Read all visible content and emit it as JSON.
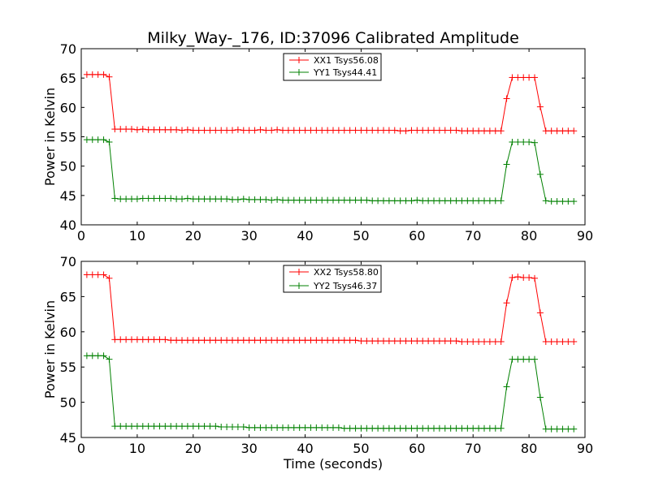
{
  "chart_data": [
    {
      "type": "line",
      "title": "Milky_Way-_176, ID:37096 Calibrated Amplitude",
      "xlabel": "",
      "ylabel": "Power in Kelvin",
      "xlim": [
        0,
        90
      ],
      "ylim": [
        40,
        70
      ],
      "xticks": [
        0,
        10,
        20,
        30,
        40,
        50,
        60,
        70,
        80,
        90
      ],
      "yticks": [
        40,
        45,
        50,
        55,
        60,
        65,
        70
      ],
      "grid": false,
      "legend_position": "top-center",
      "x": [
        1,
        2,
        3,
        4,
        5,
        6,
        7,
        8,
        9,
        10,
        11,
        12,
        13,
        14,
        15,
        16,
        17,
        18,
        19,
        20,
        21,
        22,
        23,
        24,
        25,
        26,
        27,
        28,
        29,
        30,
        31,
        32,
        33,
        34,
        35,
        36,
        37,
        38,
        39,
        40,
        41,
        42,
        43,
        44,
        45,
        46,
        47,
        48,
        49,
        50,
        51,
        52,
        53,
        54,
        55,
        56,
        57,
        58,
        59,
        60,
        61,
        62,
        63,
        64,
        65,
        66,
        67,
        68,
        69,
        70,
        71,
        72,
        73,
        74,
        75,
        76,
        77,
        78,
        79,
        80,
        81,
        82,
        83,
        84,
        85,
        86,
        87,
        88
      ],
      "series": [
        {
          "name": "XX1 Tsys56.08",
          "color": "#ff0000",
          "values": [
            65.6,
            65.6,
            65.6,
            65.6,
            65.2,
            56.3,
            56.3,
            56.3,
            56.3,
            56.2,
            56.3,
            56.2,
            56.2,
            56.2,
            56.2,
            56.2,
            56.2,
            56.1,
            56.2,
            56.1,
            56.1,
            56.1,
            56.1,
            56.1,
            56.1,
            56.1,
            56.1,
            56.2,
            56.1,
            56.1,
            56.1,
            56.2,
            56.1,
            56.1,
            56.2,
            56.1,
            56.1,
            56.1,
            56.1,
            56.1,
            56.1,
            56.1,
            56.1,
            56.1,
            56.1,
            56.1,
            56.1,
            56.1,
            56.1,
            56.1,
            56.1,
            56.1,
            56.1,
            56.1,
            56.1,
            56.1,
            56.0,
            56.0,
            56.1,
            56.1,
            56.1,
            56.1,
            56.1,
            56.1,
            56.1,
            56.1,
            56.1,
            56.0,
            56.0,
            56.0,
            56.0,
            56.0,
            56.0,
            56.0,
            56.0,
            61.5,
            65.1,
            65.1,
            65.1,
            65.1,
            65.1,
            60.1,
            56.0,
            56.0,
            56.0,
            56.0,
            56.0,
            56.0
          ]
        },
        {
          "name": "YY1 Tsys44.41",
          "color": "#008000",
          "values": [
            54.5,
            54.5,
            54.5,
            54.5,
            54.1,
            44.5,
            44.4,
            44.4,
            44.4,
            44.4,
            44.5,
            44.5,
            44.5,
            44.5,
            44.5,
            44.5,
            44.4,
            44.4,
            44.5,
            44.4,
            44.4,
            44.4,
            44.4,
            44.4,
            44.4,
            44.4,
            44.3,
            44.3,
            44.4,
            44.3,
            44.3,
            44.3,
            44.3,
            44.2,
            44.3,
            44.2,
            44.2,
            44.2,
            44.2,
            44.2,
            44.2,
            44.2,
            44.2,
            44.2,
            44.2,
            44.2,
            44.2,
            44.2,
            44.2,
            44.2,
            44.2,
            44.1,
            44.1,
            44.1,
            44.1,
            44.1,
            44.1,
            44.1,
            44.1,
            44.2,
            44.1,
            44.1,
            44.1,
            44.1,
            44.1,
            44.1,
            44.1,
            44.1,
            44.1,
            44.1,
            44.1,
            44.1,
            44.1,
            44.1,
            44.1,
            50.3,
            54.1,
            54.1,
            54.1,
            54.1,
            54.0,
            48.6,
            44.1,
            44.0,
            44.0,
            44.0,
            44.0,
            44.0
          ]
        }
      ]
    },
    {
      "type": "line",
      "title": "",
      "xlabel": "Time (seconds)",
      "ylabel": "Power in Kelvin",
      "xlim": [
        0,
        90
      ],
      "ylim": [
        45,
        70
      ],
      "xticks": [
        0,
        10,
        20,
        30,
        40,
        50,
        60,
        70,
        80,
        90
      ],
      "yticks": [
        45,
        50,
        55,
        60,
        65,
        70
      ],
      "grid": false,
      "legend_position": "top-center",
      "x": [
        1,
        2,
        3,
        4,
        5,
        6,
        7,
        8,
        9,
        10,
        11,
        12,
        13,
        14,
        15,
        16,
        17,
        18,
        19,
        20,
        21,
        22,
        23,
        24,
        25,
        26,
        27,
        28,
        29,
        30,
        31,
        32,
        33,
        34,
        35,
        36,
        37,
        38,
        39,
        40,
        41,
        42,
        43,
        44,
        45,
        46,
        47,
        48,
        49,
        50,
        51,
        52,
        53,
        54,
        55,
        56,
        57,
        58,
        59,
        60,
        61,
        62,
        63,
        64,
        65,
        66,
        67,
        68,
        69,
        70,
        71,
        72,
        73,
        74,
        75,
        76,
        77,
        78,
        79,
        80,
        81,
        82,
        83,
        84,
        85,
        86,
        87,
        88
      ],
      "series": [
        {
          "name": "XX2 Tsys58.80",
          "color": "#ff0000",
          "values": [
            68.1,
            68.1,
            68.1,
            68.1,
            67.6,
            58.9,
            58.9,
            58.9,
            58.9,
            58.9,
            58.9,
            58.9,
            58.9,
            58.9,
            58.9,
            58.8,
            58.8,
            58.8,
            58.8,
            58.8,
            58.8,
            58.8,
            58.8,
            58.8,
            58.8,
            58.8,
            58.8,
            58.8,
            58.8,
            58.8,
            58.8,
            58.8,
            58.8,
            58.8,
            58.8,
            58.8,
            58.8,
            58.8,
            58.8,
            58.8,
            58.8,
            58.8,
            58.8,
            58.8,
            58.8,
            58.8,
            58.8,
            58.8,
            58.8,
            58.7,
            58.7,
            58.7,
            58.7,
            58.7,
            58.7,
            58.7,
            58.7,
            58.7,
            58.7,
            58.7,
            58.7,
            58.7,
            58.7,
            58.7,
            58.7,
            58.7,
            58.7,
            58.6,
            58.6,
            58.6,
            58.6,
            58.6,
            58.6,
            58.6,
            58.6,
            64.1,
            67.7,
            67.8,
            67.7,
            67.7,
            67.6,
            62.7,
            58.6,
            58.6,
            58.6,
            58.6,
            58.6,
            58.6
          ]
        },
        {
          "name": "YY2 Tsys46.37",
          "color": "#008000",
          "values": [
            56.6,
            56.6,
            56.6,
            56.6,
            56.1,
            46.6,
            46.6,
            46.6,
            46.6,
            46.6,
            46.6,
            46.6,
            46.6,
            46.6,
            46.6,
            46.6,
            46.6,
            46.6,
            46.6,
            46.6,
            46.6,
            46.6,
            46.6,
            46.6,
            46.5,
            46.5,
            46.5,
            46.5,
            46.5,
            46.4,
            46.4,
            46.4,
            46.4,
            46.4,
            46.4,
            46.4,
            46.4,
            46.4,
            46.4,
            46.4,
            46.4,
            46.4,
            46.4,
            46.4,
            46.4,
            46.4,
            46.3,
            46.3,
            46.3,
            46.3,
            46.3,
            46.3,
            46.3,
            46.3,
            46.3,
            46.3,
            46.3,
            46.3,
            46.3,
            46.3,
            46.3,
            46.3,
            46.3,
            46.3,
            46.3,
            46.3,
            46.3,
            46.3,
            46.3,
            46.3,
            46.3,
            46.3,
            46.3,
            46.3,
            46.3,
            52.2,
            56.1,
            56.1,
            56.1,
            56.1,
            56.1,
            50.7,
            46.2,
            46.2,
            46.2,
            46.2,
            46.2,
            46.2
          ]
        }
      ]
    }
  ]
}
